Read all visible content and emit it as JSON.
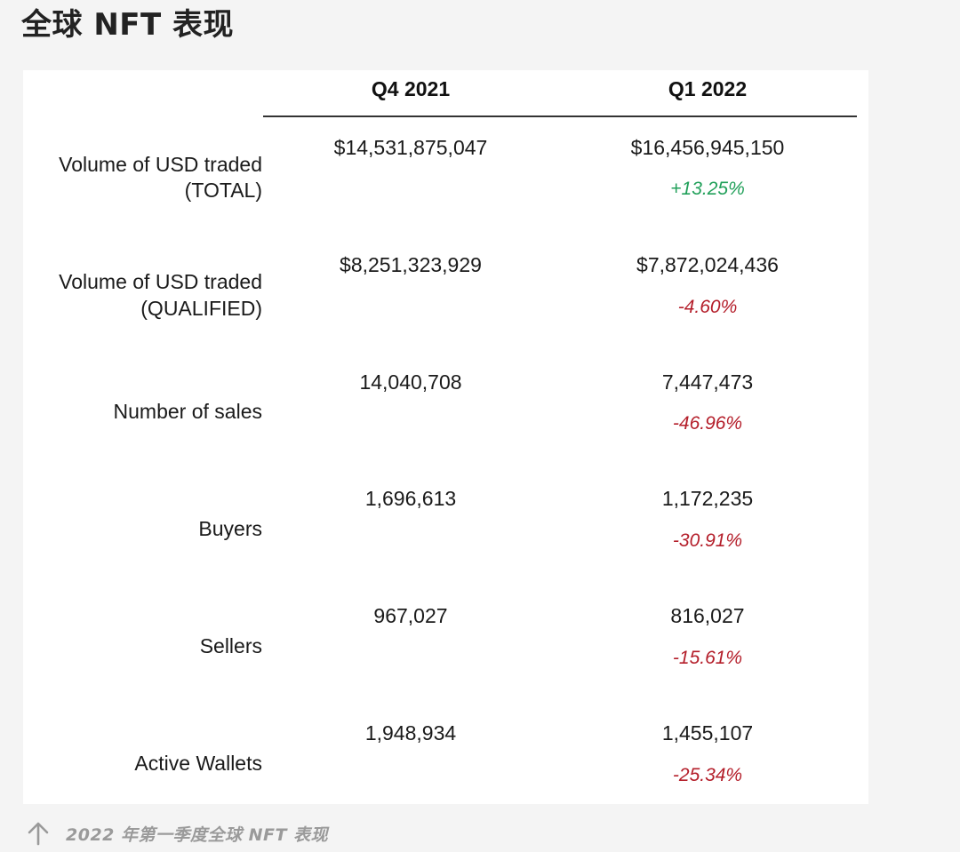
{
  "title": "全球 NFT 表现",
  "table": {
    "columns": [
      "Q4 2021",
      "Q1 2022"
    ],
    "rows": [
      {
        "label_lines": [
          "Volume of USD traded",
          "(TOTAL)"
        ],
        "q4": "$14,531,875,047",
        "q1": "$16,456,945,150",
        "change": "+13.25%",
        "direction": "up"
      },
      {
        "label_lines": [
          "Volume of USD traded",
          "(QUALIFIED)"
        ],
        "q4": "$8,251,323,929",
        "q1": "$7,872,024,436",
        "change": "-4.60%",
        "direction": "down"
      },
      {
        "label_lines": [
          "Number of sales"
        ],
        "q4": "14,040,708",
        "q1": "7,447,473",
        "change": "-46.96%",
        "direction": "down"
      },
      {
        "label_lines": [
          "Buyers"
        ],
        "q4": "1,696,613",
        "q1": "1,172,235",
        "change": "-30.91%",
        "direction": "down"
      },
      {
        "label_lines": [
          "Sellers"
        ],
        "q4": "967,027",
        "q1": "816,027",
        "change": "-15.61%",
        "direction": "down"
      },
      {
        "label_lines": [
          "Active Wallets"
        ],
        "q4": "1,948,934",
        "q1": "1,455,107",
        "change": "-25.34%",
        "direction": "down"
      }
    ]
  },
  "caption": {
    "icon": "arrow-up-icon",
    "text": "2022 年第一季度全球 NFT 表现"
  },
  "colors": {
    "positive": "#22a05a",
    "negative": "#b41e2a",
    "caption": "#9a9a9a"
  }
}
